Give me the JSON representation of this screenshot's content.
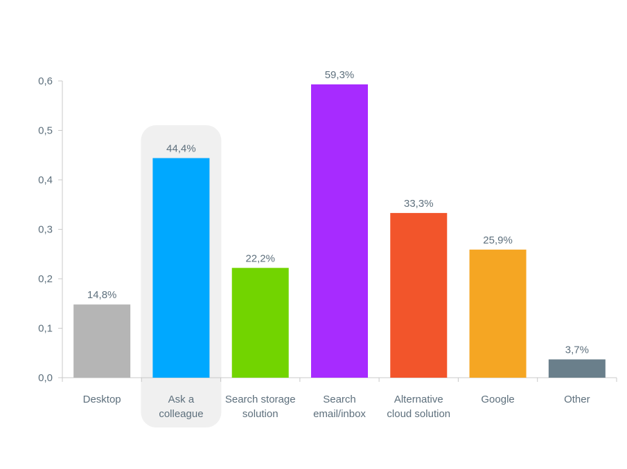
{
  "chart_data": {
    "type": "bar",
    "categories": [
      [
        "Desktop"
      ],
      [
        "Ask a",
        "colleague"
      ],
      [
        "Search storage",
        "solution"
      ],
      [
        "Search",
        "email/inbox"
      ],
      [
        "Alternative",
        "cloud solution"
      ],
      [
        "Google"
      ],
      [
        "Other"
      ]
    ],
    "values": [
      0.148,
      0.444,
      0.222,
      0.593,
      0.333,
      0.259,
      0.037
    ],
    "value_labels": [
      "14,8%",
      "44,4%",
      "22,2%",
      "59,3%",
      "33,3%",
      "25,9%",
      "3,7%"
    ],
    "colors": [
      "#b5b5b5",
      "#00a8ff",
      "#72d400",
      "#a72bff",
      "#f2552b",
      "#f5a623",
      "#6a7f8b"
    ],
    "ylim": [
      0,
      0.6
    ],
    "yticks": [
      "0,0",
      "0,1",
      "0,2",
      "0,3",
      "0,4",
      "0,5",
      "0,6"
    ],
    "highlighted_category_index": 1,
    "highlight_color": "#f0f0f0",
    "axis_color": "#c8c8c8",
    "text_color": "#5d6f7c",
    "grid": false,
    "title": "",
    "xlabel": "",
    "ylabel": ""
  }
}
